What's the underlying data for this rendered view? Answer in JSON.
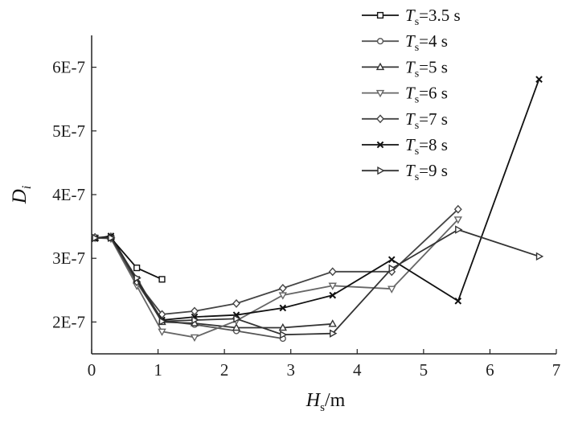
{
  "chart_data": {
    "type": "line",
    "title": "",
    "xlabel": {
      "var": "H",
      "sub": "s",
      "unit": "/m"
    },
    "ylabel": {
      "var": "D",
      "sub": "i"
    },
    "xlim": [
      0,
      7
    ],
    "ylim": [
      1.5e-07,
      6.5e-07
    ],
    "x_ticks": [
      "0",
      "1",
      "2",
      "3",
      "4",
      "5",
      "6",
      "7"
    ],
    "y_ticks": [
      {
        "value": 2e-07,
        "label": "2E-7"
      },
      {
        "value": 3e-07,
        "label": "3E-7"
      },
      {
        "value": 4e-07,
        "label": "4E-7"
      },
      {
        "value": 5e-07,
        "label": "5E-7"
      },
      {
        "value": 6e-07,
        "label": "6E-7"
      }
    ],
    "grid": false,
    "legend_position": "top-right",
    "series": [
      {
        "name": "3.5 s",
        "legend_var": "T",
        "legend_sub": "s",
        "legend_eq": "=",
        "marker": "square",
        "color": "#111111",
        "x": [
          0.05,
          0.29,
          0.68,
          1.06
        ],
        "y": [
          3.32e-07,
          3.32e-07,
          2.85e-07,
          2.67e-07
        ]
      },
      {
        "name": "4 s",
        "legend_var": "T",
        "legend_sub": "s",
        "legend_eq": "=",
        "marker": "circle",
        "color": "#555555",
        "x": [
          0.05,
          0.29,
          0.68,
          1.06,
          1.55,
          2.18,
          2.88
        ],
        "y": [
          3.32e-07,
          3.33e-07,
          2.62e-07,
          2.02e-07,
          1.96e-07,
          1.86e-07,
          1.74e-07
        ]
      },
      {
        "name": "5 s",
        "legend_var": "T",
        "legend_sub": "s",
        "legend_eq": "=",
        "marker": "triangle-up",
        "color": "#333333",
        "x": [
          0.05,
          0.29,
          0.68,
          1.06,
          1.55,
          2.18,
          2.88,
          3.63
        ],
        "y": [
          3.32e-07,
          3.34e-07,
          2.65e-07,
          2e-07,
          1.98e-07,
          1.91e-07,
          1.91e-07,
          1.97e-07
        ]
      },
      {
        "name": "6 s",
        "legend_var": "T",
        "legend_sub": "s",
        "legend_eq": "=",
        "marker": "triangle-down",
        "color": "#666666",
        "x": [
          0.05,
          0.29,
          0.68,
          1.06,
          1.55,
          2.18,
          2.88,
          3.63,
          4.52,
          5.52
        ],
        "y": [
          3.32e-07,
          3.31e-07,
          2.57e-07,
          1.85e-07,
          1.76e-07,
          2.02e-07,
          2.42e-07,
          2.57e-07,
          2.52e-07,
          3.61e-07
        ]
      },
      {
        "name": "7 s",
        "legend_var": "T",
        "legend_sub": "s",
        "legend_eq": "=",
        "marker": "diamond",
        "color": "#444444",
        "x": [
          0.05,
          0.29,
          0.68,
          1.06,
          1.55,
          2.18,
          2.88,
          3.63,
          4.52,
          5.52
        ],
        "y": [
          3.33e-07,
          3.33e-07,
          2.63e-07,
          2.12e-07,
          2.17e-07,
          2.29e-07,
          2.53e-07,
          2.79e-07,
          2.79e-07,
          3.77e-07
        ]
      },
      {
        "name": "8 s",
        "legend_var": "T",
        "legend_sub": "s",
        "legend_eq": "=",
        "marker": "x",
        "color": "#111111",
        "x": [
          0.05,
          0.29,
          0.68,
          1.06,
          1.55,
          2.18,
          2.88,
          3.63,
          4.52,
          5.52,
          6.74
        ],
        "y": [
          3.31e-07,
          3.35e-07,
          2.67e-07,
          2.03e-07,
          2.08e-07,
          2.11e-07,
          2.22e-07,
          2.42e-07,
          2.98e-07,
          2.33e-07,
          5.81e-07
        ]
      },
      {
        "name": "9 s",
        "legend_var": "T",
        "legend_sub": "s",
        "legend_eq": "=",
        "marker": "triangle-right",
        "color": "#333333",
        "x": [
          0.05,
          0.29,
          0.68,
          1.06,
          1.55,
          2.18,
          2.88,
          3.63,
          4.52,
          5.52,
          6.74
        ],
        "y": [
          3.32e-07,
          3.32e-07,
          2.69e-07,
          2.01e-07,
          2.03e-07,
          2.05e-07,
          1.8e-07,
          1.82e-07,
          2.84e-07,
          3.45e-07,
          3.03e-07
        ]
      }
    ]
  }
}
